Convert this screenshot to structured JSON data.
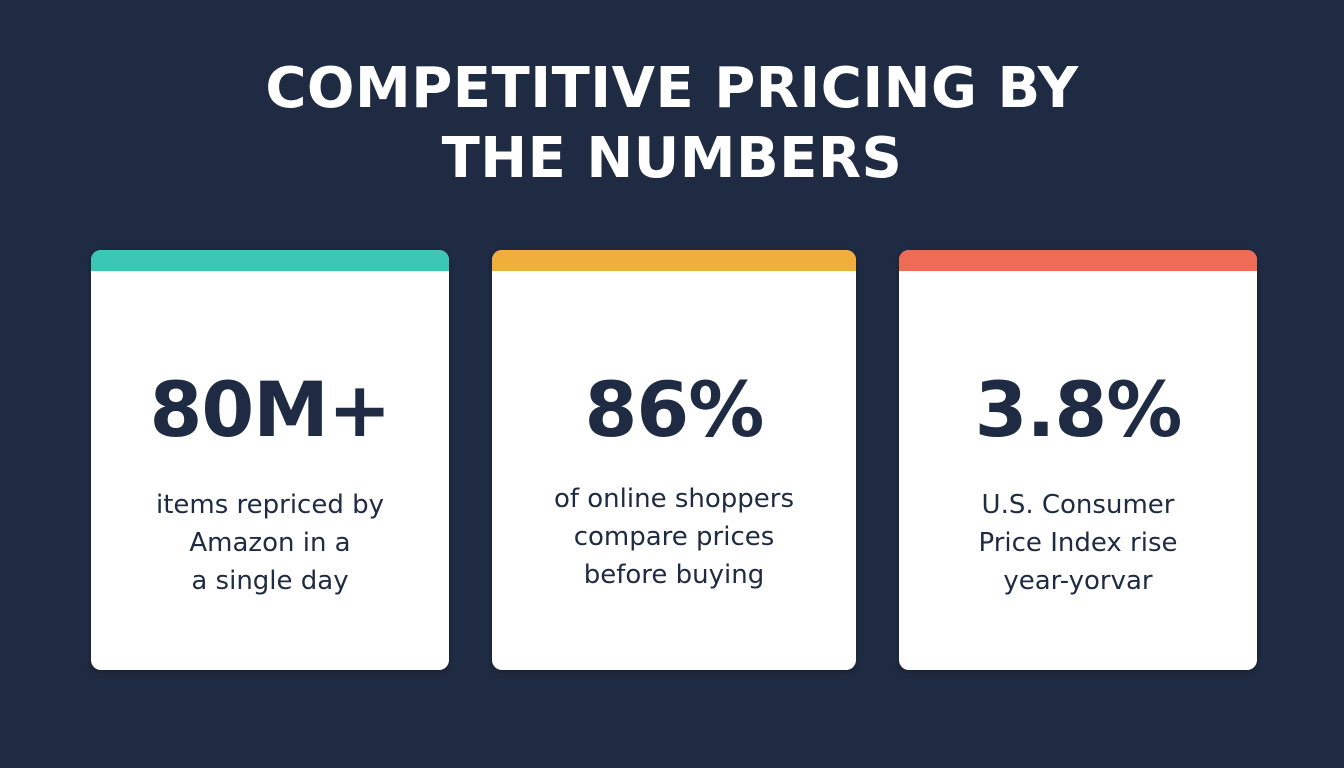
{
  "title": {
    "line1": "COMPETITIVE PRICING BY",
    "line2": "THE NUMBERS"
  },
  "cards": [
    {
      "accent_color": "#3cc6b4",
      "stat": "80M+",
      "description": [
        "items repriced by",
        "Amazon in a",
        "a single day"
      ]
    },
    {
      "accent_color": "#f0ae3c",
      "stat": "86%",
      "description": [
        "of online shoppers",
        "compare prices",
        "before buying"
      ]
    },
    {
      "accent_color": "#ee6b56",
      "stat": "3.8%",
      "description": [
        "U.S. Consumer",
        "Price Index rise",
        "year-yorvar"
      ]
    }
  ],
  "colors": {
    "background": "#1f2b42",
    "card_background": "#ffffff",
    "text_dark": "#1f2b42",
    "title_text": "#ffffff"
  }
}
